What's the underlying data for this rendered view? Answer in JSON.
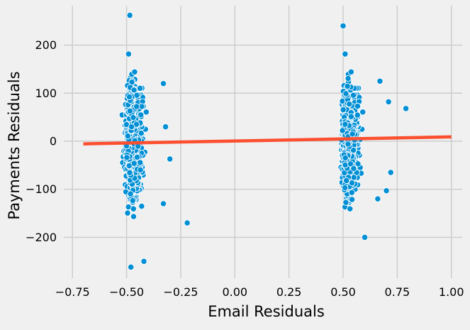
{
  "chart_data": {
    "type": "scatter",
    "title": "",
    "xlabel": "Email Residuals",
    "ylabel": "Payments Residuals",
    "xlim": [
      -0.79,
      1.05
    ],
    "ylim": [
      -285,
      282
    ],
    "x_ticks": [
      -0.75,
      -0.5,
      -0.25,
      0.0,
      0.25,
      0.5,
      0.75,
      1.0
    ],
    "x_tick_labels": [
      "−0.75",
      "−0.50",
      "−0.25",
      "0.00",
      "0.25",
      "0.50",
      "0.75",
      "1.00"
    ],
    "y_ticks": [
      -200,
      -100,
      0,
      100,
      200
    ],
    "y_tick_labels": [
      "−200",
      "−100",
      "0",
      "100",
      "200"
    ],
    "grid": true,
    "legend": "none",
    "clusters": [
      {
        "name": "",
        "x_center": -0.48,
        "x_range": [
          -0.55,
          -0.22
        ],
        "y_range": [
          -262,
          262
        ],
        "outliers": [
          {
            "x": -0.485,
            "y": 262
          },
          {
            "x": -0.48,
            "y": -262
          },
          {
            "x": -0.33,
            "y": 120
          },
          {
            "x": -0.32,
            "y": 30
          },
          {
            "x": -0.3,
            "y": -37
          },
          {
            "x": -0.33,
            "y": -130
          },
          {
            "x": -0.22,
            "y": -170
          },
          {
            "x": -0.42,
            "y": -250
          }
        ]
      },
      {
        "name": "",
        "x_center": 0.52,
        "x_range": [
          0.45,
          0.79
        ],
        "y_range": [
          -225,
          240
        ],
        "outliers": [
          {
            "x": 0.79,
            "y": 68
          },
          {
            "x": 0.72,
            "y": -65
          },
          {
            "x": 0.7,
            "y": -103
          },
          {
            "x": 0.66,
            "y": -120
          },
          {
            "x": 0.71,
            "y": 82
          },
          {
            "x": 0.67,
            "y": 125
          },
          {
            "x": 0.5,
            "y": 240
          },
          {
            "x": 0.6,
            "y": -200
          }
        ]
      }
    ],
    "fit_line": {
      "x": [
        -0.7,
        1.0
      ],
      "y": [
        -5.5,
        9
      ]
    },
    "colors": {
      "points": "#008fd5",
      "point_edge": "#ffffff",
      "fit_line": "#fc4f30",
      "grid": "#cbcbcb",
      "background": "#f0f0f0"
    }
  }
}
